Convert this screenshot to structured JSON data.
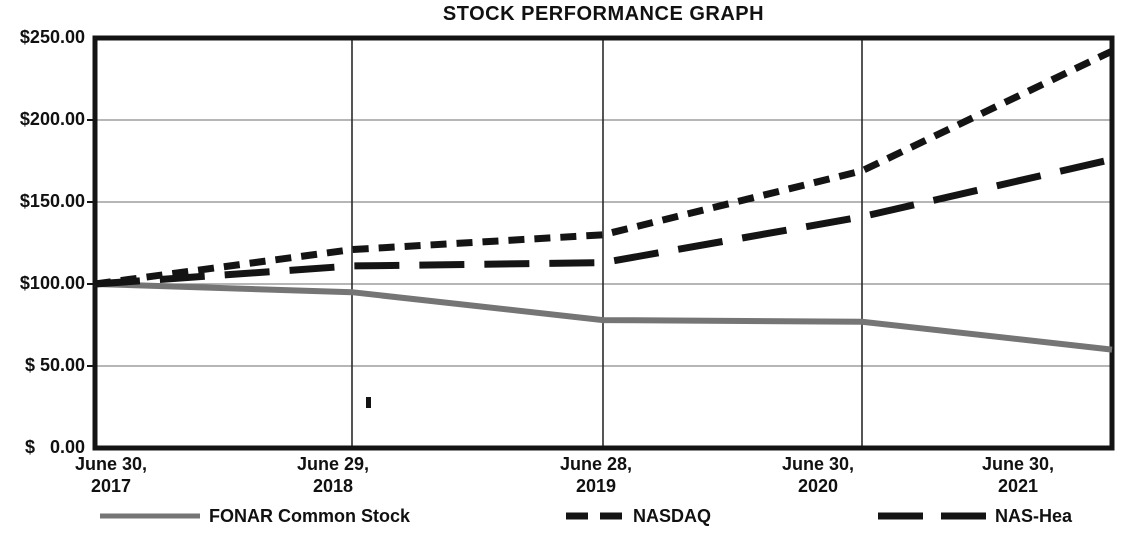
{
  "chart_data": {
    "type": "line",
    "title": "STOCK PERFORMANCE GRAPH",
    "categories": [
      "June 30, 2017",
      "June 29, 2018",
      "June 28, 2019",
      "June 30, 2020",
      "June 30, 2021"
    ],
    "series": [
      {
        "name": "FONAR Common Stock",
        "style": "solid",
        "color": "#757575",
        "values": [
          100,
          95,
          78,
          77,
          60
        ]
      },
      {
        "name": "NASDAQ",
        "style": "short-dash",
        "color": "#141414",
        "values": [
          100,
          121,
          130,
          169,
          242
        ]
      },
      {
        "name": "NAS-Hea",
        "style": "long-dash",
        "color": "#141414",
        "values": [
          100,
          111,
          113,
          141,
          176
        ]
      }
    ],
    "y_ticks": [
      {
        "value": 250,
        "label": "$250.00"
      },
      {
        "value": 200,
        "label": "$200.00"
      },
      {
        "value": 150,
        "label": "$150.00"
      },
      {
        "value": 100,
        "label": "$100.00"
      },
      {
        "value": 50,
        "label": "$ 50.00"
      },
      {
        "value": 0,
        "label": "$   0.00"
      }
    ],
    "ylim": [
      0,
      250
    ],
    "xlabel": "",
    "ylabel": "",
    "grid": true,
    "legend_position": "bottom",
    "frame_color": "#141414",
    "h_gridline_color": "#8a8a8a",
    "v_gridline_color": "#2b2b2b"
  }
}
